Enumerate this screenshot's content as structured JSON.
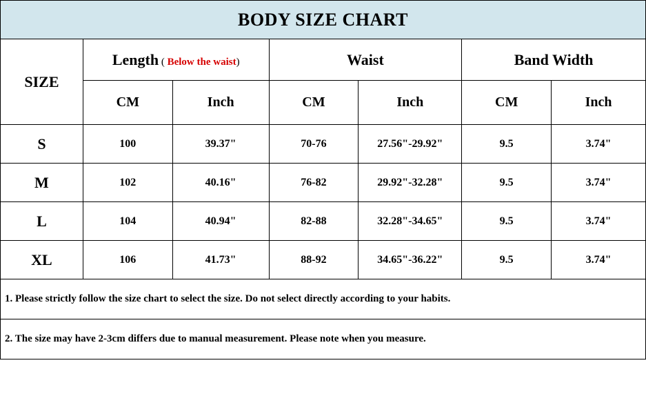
{
  "title": "BODY SIZE CHART",
  "colors": {
    "header_bg": "#d2e6ed",
    "border": "#000000",
    "text": "#000000",
    "accent": "#d60000",
    "background": "#ffffff"
  },
  "headers": {
    "size": "SIZE",
    "length": {
      "label": "Length",
      "sub_open": " ( ",
      "sub_red": "Below the waist",
      "sub_close": ")"
    },
    "waist": "Waist",
    "band_width": "Band Width",
    "units": {
      "cm": "CM",
      "inch": "Inch"
    }
  },
  "columns": [
    "SIZE",
    "Length CM",
    "Length Inch",
    "Waist CM",
    "Waist Inch",
    "Band Width CM",
    "Band Width Inch"
  ],
  "rows": [
    {
      "size": "S",
      "length_cm": "100",
      "length_in": "39.37\"",
      "waist_cm": "70-76",
      "waist_in": "27.56\"-29.92\"",
      "band_cm": "9.5",
      "band_in": "3.74\""
    },
    {
      "size": "M",
      "length_cm": "102",
      "length_in": "40.16\"",
      "waist_cm": "76-82",
      "waist_in": "29.92\"-32.28\"",
      "band_cm": "9.5",
      "band_in": "3.74\""
    },
    {
      "size": "L",
      "length_cm": "104",
      "length_in": "40.94\"",
      "waist_cm": "82-88",
      "waist_in": "32.28\"-34.65\"",
      "band_cm": "9.5",
      "band_in": "3.74\""
    },
    {
      "size": "XL",
      "length_cm": "106",
      "length_in": "41.73\"",
      "waist_cm": "88-92",
      "waist_in": "34.65\"-36.22\"",
      "band_cm": "9.5",
      "band_in": "3.74\""
    }
  ],
  "notes": [
    "1. Please strictly follow the size chart to select the size. Do not select directly according to your habits.",
    "2. The size may have 2-3cm differs due to manual measurement. Please note when you measure."
  ]
}
